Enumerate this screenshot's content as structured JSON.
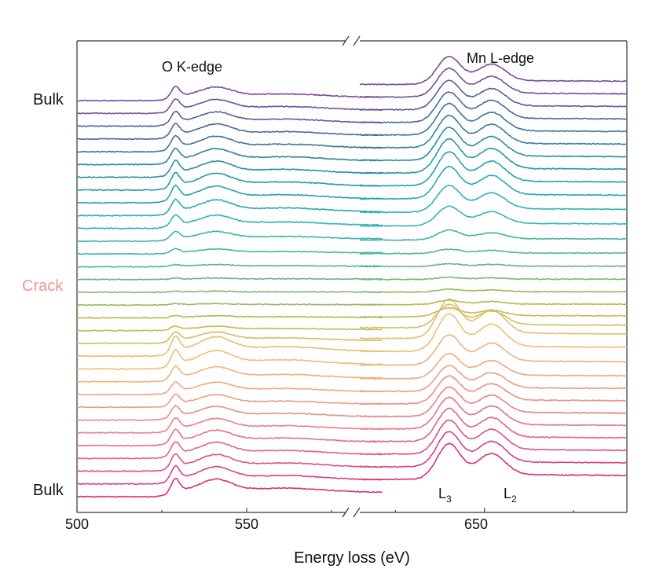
{
  "chart_data": {
    "type": "line",
    "xlabel": "Energy loss (eV)",
    "x_ticks": [
      500,
      550,
      650
    ],
    "x_segments": [
      [
        500,
        590
      ],
      [
        615,
        690
      ]
    ],
    "axis_break": true,
    "y_axis_visible": false,
    "side_labels": {
      "top": "Bulk",
      "middle": "Crack",
      "bottom": "Bulk",
      "middle_color": "#f0958f"
    },
    "annotations": {
      "o_edge": "O K-edge",
      "mn_edge": "Mn L-edge",
      "l3": "L",
      "l3_sub": "3",
      "l2": "L",
      "l2_sub": "2"
    },
    "series_count": 32,
    "series_order": "bottom (Bulk) to top (Bulk), stacked with vertical offset",
    "color_stops": [
      "#d62f7d",
      "#e46a8b",
      "#ee9c82",
      "#f1c077",
      "#b7ba4e",
      "#5fb78a",
      "#2fb3bd",
      "#1f9aa8",
      "#3f6f9a",
      "#7a4a9a"
    ],
    "features": [
      {
        "name": "O pre-peak",
        "x": 529,
        "unit": "eV"
      },
      {
        "name": "O main peak",
        "x": 541,
        "unit": "eV"
      },
      {
        "name": "Mn L3",
        "x": 640,
        "unit": "eV"
      },
      {
        "name": "Mn L2",
        "x": 652,
        "unit": "eV"
      }
    ],
    "amplitude_profile": [
      1.0,
      0.98,
      0.95,
      0.92,
      0.88,
      0.82,
      0.78,
      0.72,
      0.7,
      0.85,
      1.05,
      1.1,
      0.65,
      0.25,
      0.12,
      0.08,
      0.06,
      0.08,
      0.12,
      0.28,
      0.55,
      0.75,
      0.9,
      0.95,
      0.95,
      0.92,
      0.9,
      0.88,
      0.85,
      0.82,
      0.8,
      0.78
    ],
    "grid": false,
    "legend": "none"
  }
}
